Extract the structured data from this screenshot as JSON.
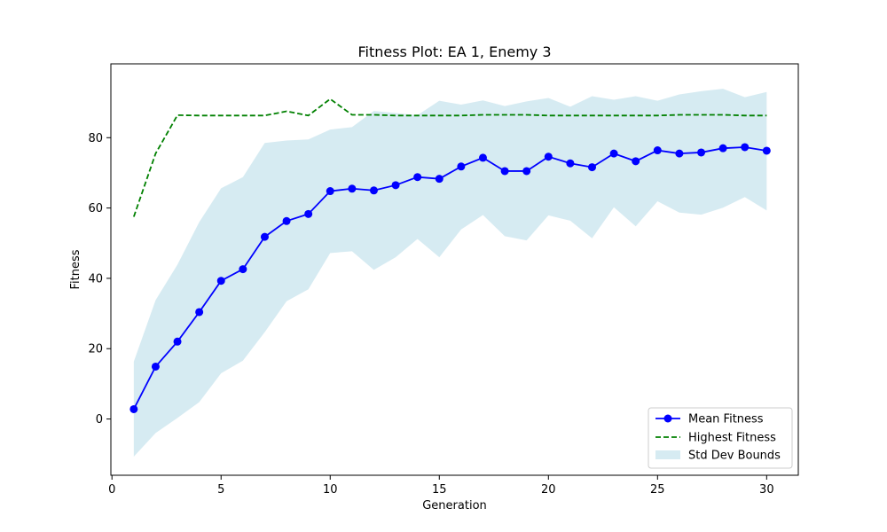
{
  "chart_data": {
    "type": "line",
    "title": "Fitness Plot: EA 1, Enemy 3",
    "xlabel": "Generation",
    "ylabel": "Fitness",
    "xlim": [
      -0.05,
      31.45
    ],
    "ylim": [
      -16,
      101
    ],
    "xticks": [
      0,
      5,
      10,
      15,
      20,
      25,
      30
    ],
    "yticks": [
      0,
      20,
      40,
      60,
      80
    ],
    "grid": false,
    "legend_position": "lower-right",
    "x": [
      1,
      2,
      3,
      4,
      5,
      6,
      7,
      8,
      9,
      10,
      11,
      12,
      13,
      14,
      15,
      16,
      17,
      18,
      19,
      20,
      21,
      22,
      23,
      24,
      25,
      26,
      27,
      28,
      29,
      30
    ],
    "series": [
      {
        "name": "Mean Fitness",
        "style": "line-marker",
        "color": "#0000ff",
        "values": [
          2.8,
          14.9,
          22.0,
          30.4,
          39.3,
          42.6,
          51.8,
          56.3,
          58.3,
          64.8,
          65.5,
          65.0,
          66.5,
          68.8,
          68.3,
          71.8,
          74.3,
          70.5,
          70.5,
          74.6,
          72.7,
          71.6,
          75.5,
          73.3,
          76.4,
          75.5,
          75.8,
          77.0,
          77.3,
          76.3
        ]
      },
      {
        "name": "Highest Fitness",
        "style": "dashed",
        "color": "#008000",
        "values": [
          57.5,
          75.5,
          86.4,
          86.3,
          86.3,
          86.3,
          86.3,
          87.5,
          86.3,
          91.0,
          86.5,
          86.5,
          86.3,
          86.3,
          86.3,
          86.3,
          86.5,
          86.5,
          86.5,
          86.3,
          86.3,
          86.3,
          86.3,
          86.3,
          86.3,
          86.5,
          86.5,
          86.5,
          86.3,
          86.3
        ]
      }
    ],
    "band": {
      "name": "Std Dev Bounds",
      "color": "#add8e6",
      "opacity": 0.5,
      "lower": [
        -10.7,
        -4.0,
        0.3,
        4.8,
        13.0,
        16.6,
        24.7,
        33.5,
        36.9,
        47.2,
        47.7,
        42.4,
        46.0,
        51.2,
        46.0,
        53.9,
        58.0,
        52.0,
        50.8,
        57.9,
        56.4,
        51.4,
        60.2,
        54.8,
        61.9,
        58.7,
        58.1,
        60.1,
        63.1,
        59.3
      ],
      "upper": [
        16.3,
        33.8,
        43.9,
        56.0,
        65.6,
        68.8,
        78.5,
        79.2,
        79.5,
        82.3,
        83.0,
        87.6,
        87.0,
        86.4,
        90.5,
        89.4,
        90.6,
        89.0,
        90.3,
        91.3,
        88.8,
        91.8,
        90.8,
        91.8,
        90.5,
        92.3,
        93.2,
        93.9,
        91.5,
        93.0
      ]
    }
  }
}
